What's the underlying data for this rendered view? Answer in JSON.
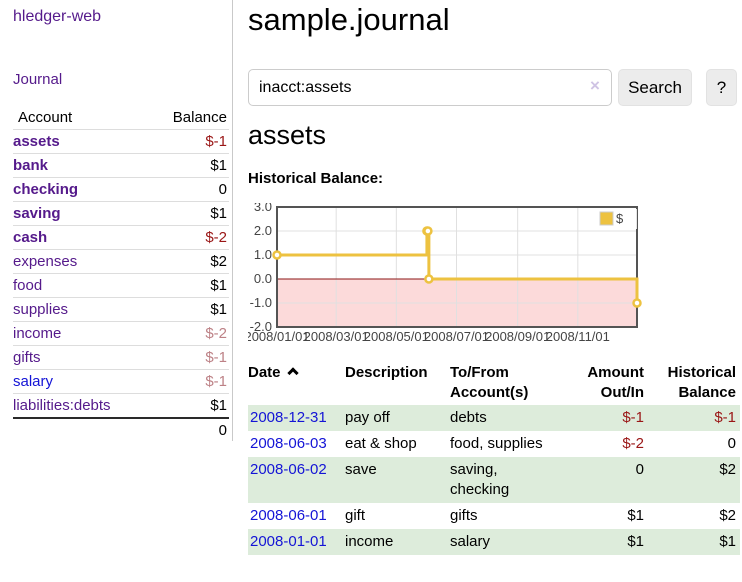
{
  "sidebar": {
    "brand": "hledger-web",
    "nav": {
      "journal": "Journal"
    },
    "accounts": {
      "headers": {
        "account": "Account",
        "balance": "Balance"
      },
      "rows": [
        {
          "account": "assets",
          "balance": "$-1",
          "level": 1,
          "matched": true,
          "negative": true,
          "visited": true
        },
        {
          "account": "bank",
          "balance": "$1",
          "level": 2,
          "matched": true,
          "negative": false,
          "visited": true
        },
        {
          "account": "checking",
          "balance": "0",
          "level": 3,
          "matched": true,
          "negative": false,
          "visited": true
        },
        {
          "account": "saving",
          "balance": "$1",
          "level": 3,
          "matched": true,
          "negative": false,
          "visited": true
        },
        {
          "account": "cash",
          "balance": "$-2",
          "level": 2,
          "matched": true,
          "negative": true,
          "visited": true
        },
        {
          "account": "expenses",
          "balance": "$2",
          "level": 1,
          "matched": false,
          "negative": false,
          "visited": true
        },
        {
          "account": "food",
          "balance": "$1",
          "level": 2,
          "matched": false,
          "negative": false,
          "visited": true
        },
        {
          "account": "supplies",
          "balance": "$1",
          "level": 2,
          "matched": false,
          "negative": false,
          "visited": true
        },
        {
          "account": "income",
          "balance": "$-2",
          "level": 1,
          "matched": false,
          "negative": true,
          "visited": true
        },
        {
          "account": "gifts",
          "balance": "$-1",
          "level": 2,
          "matched": false,
          "negative": true,
          "visited": true
        },
        {
          "account": "salary",
          "balance": "$-1",
          "level": 2,
          "matched": false,
          "negative": true,
          "visited": false
        },
        {
          "account": "liabilities:debts",
          "balance": "$1",
          "level": 1,
          "matched": false,
          "negative": false,
          "visited": true
        }
      ],
      "total": "0"
    }
  },
  "main": {
    "title": "sample.journal",
    "search": {
      "value": "inacct:assets",
      "clear": "×",
      "button": "Search",
      "help": "?"
    },
    "account_heading": "assets",
    "chart_label": "Historical Balance:"
  },
  "chart_data": {
    "type": "line",
    "step": true,
    "title": "Historical Balance:",
    "series": [
      {
        "name": "$",
        "color": "#edc240",
        "points": [
          [
            "2008-01-01",
            1
          ],
          [
            "2008-06-01",
            2
          ],
          [
            "2008-06-02",
            2
          ],
          [
            "2008-06-03",
            0
          ],
          [
            "2008-12-31",
            -1
          ]
        ]
      }
    ],
    "x_range": [
      "2008-01-01",
      "2008-12-31"
    ],
    "x_tick_labels": [
      "2008/01/01",
      "2008/03/01",
      "2008/05/01",
      "2008/07/01",
      "2008/09/01",
      "2008/11/01"
    ],
    "x_tick_dates": [
      "2008-01-01",
      "2008-03-01",
      "2008-05-01",
      "2008-07-01",
      "2008-09-01",
      "2008-11-01"
    ],
    "y_ticks": [
      3,
      2,
      1,
      0,
      -1,
      -2
    ],
    "ylim": [
      -2,
      3
    ],
    "legend": {
      "label": "$",
      "position": "top-right"
    },
    "grid": true,
    "negative_region_fill": "#fcdada",
    "zero_line_color": "#8b1515",
    "border_color": "#545454",
    "grid_color": "#e0e0e0",
    "tick_label_color": "#444444"
  },
  "register": {
    "headers": {
      "date": "Date",
      "sort": "ascending",
      "description": "Description",
      "accounts": "To/From Account(s)",
      "amount": "Amount Out/In",
      "balance": "Historical Balance"
    },
    "rows": [
      {
        "date": "2008-12-31",
        "description": "pay off",
        "accounts": "debts",
        "amount": "$-1",
        "balance": "$-1"
      },
      {
        "date": "2008-06-03",
        "description": "eat & shop",
        "accounts": "food, supplies",
        "amount": "$-2",
        "balance": "0"
      },
      {
        "date": "2008-06-02",
        "description": "save",
        "accounts": "saving, checking",
        "amount": "0",
        "balance": "$2"
      },
      {
        "date": "2008-06-01",
        "description": "gift",
        "accounts": "gifts",
        "amount": "$1",
        "balance": "$2"
      },
      {
        "date": "2008-01-01",
        "description": "income",
        "accounts": "salary",
        "amount": "$1",
        "balance": "$1"
      }
    ]
  },
  "colors": {
    "accent_purple": "#551a8b",
    "link_blue": "#1414d6",
    "negative_red": "#9a1616",
    "dim_negative_red": "#bd8186",
    "row_green": "#ddecdb",
    "chart_gold": "#edc240",
    "chart_negative_fill": "#fcdada",
    "chart_zero_line": "#8b1515"
  }
}
